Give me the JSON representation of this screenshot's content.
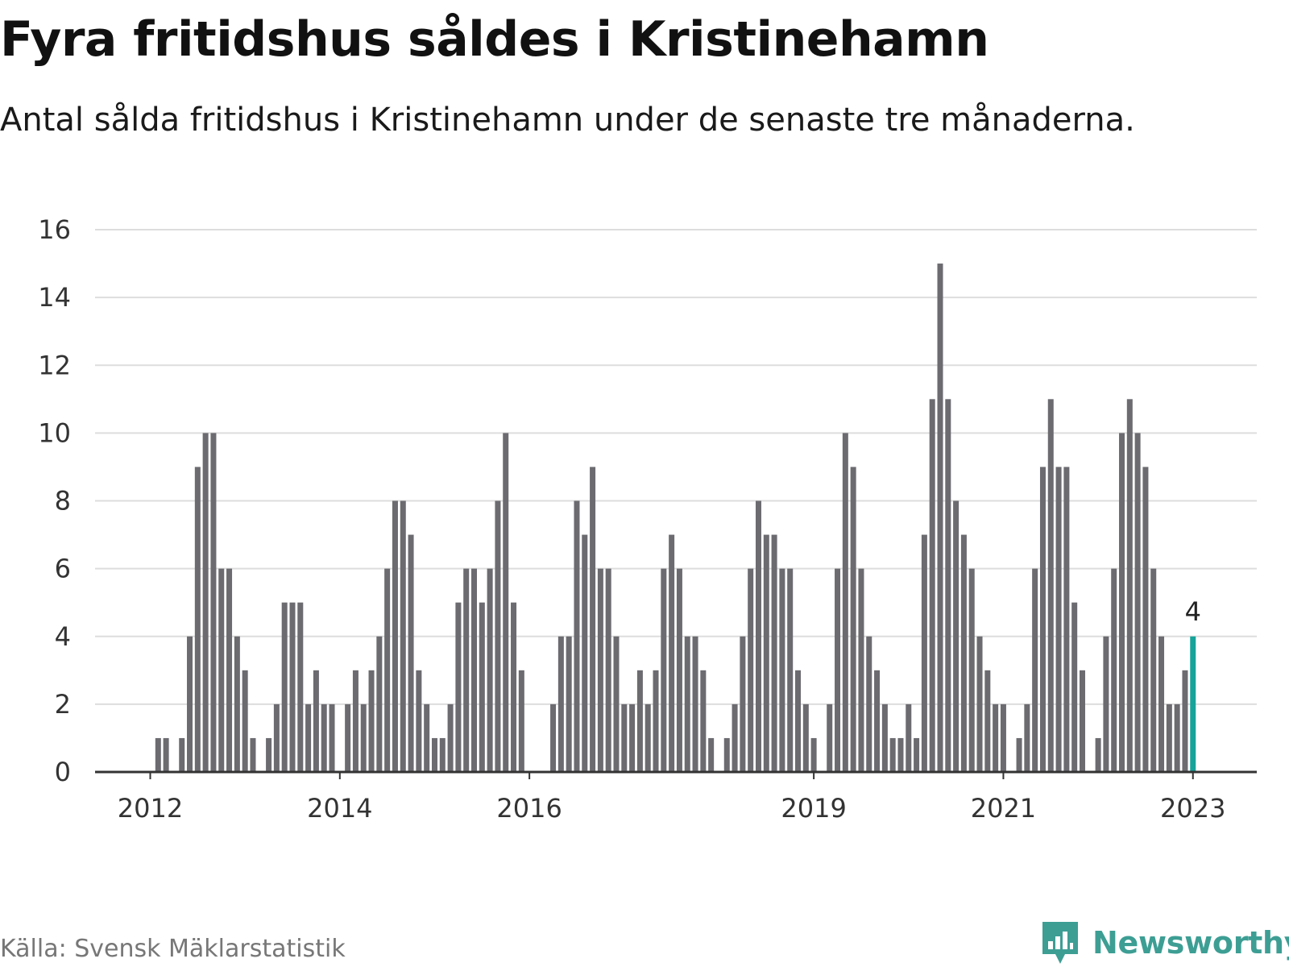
{
  "title": "Fyra fritidshus såldes i Kristinehamn",
  "subtitle": "Antal sålda fritidshus i Kristinehamn under de senaste tre månaderna.",
  "source": "Källa: Svensk Mäklarstatistik",
  "logo": {
    "text": "Newsworthy",
    "icon": "newsworthy-logo-icon",
    "color": "#3d9e94"
  },
  "colors": {
    "bar": "#6b6b70",
    "highlight": "#16a39a",
    "grid": "#dddddd",
    "axis": "#333333"
  },
  "chart_data": {
    "type": "bar",
    "xlabel": "",
    "ylabel": "",
    "ylim": [
      0,
      16
    ],
    "yticks": [
      0,
      2,
      4,
      6,
      8,
      10,
      12,
      14,
      16
    ],
    "grid": true,
    "xticks": [
      "2012",
      "2014",
      "2016",
      "2019",
      "2021",
      "2023"
    ],
    "x_start_label": "2012",
    "highlight_label": "4",
    "series": [
      {
        "values": [
          0,
          1,
          1,
          0,
          1,
          4,
          9,
          10,
          10,
          6,
          6,
          4,
          3,
          1,
          0,
          1,
          2,
          5,
          5,
          5,
          2,
          3,
          2,
          2,
          0,
          2,
          3,
          2,
          3,
          4,
          6,
          8,
          8,
          7,
          3,
          2,
          1,
          1,
          2,
          5,
          6,
          6,
          5,
          6,
          8,
          10,
          5,
          3,
          0,
          0,
          0,
          2,
          4,
          4,
          8,
          7,
          9,
          6,
          6,
          4,
          2,
          2,
          3,
          2,
          3,
          6,
          7,
          6,
          4,
          4,
          3,
          1,
          0,
          1,
          2,
          4,
          6,
          8,
          7,
          7,
          6,
          6,
          3,
          2,
          1,
          0,
          2,
          6,
          10,
          9,
          6,
          4,
          3,
          2,
          1,
          1,
          2,
          1,
          7,
          11,
          15,
          11,
          8,
          7,
          6,
          4,
          3,
          2,
          2,
          0,
          1,
          2,
          6,
          9,
          11,
          9,
          9,
          5,
          3,
          0,
          1,
          4,
          6,
          10,
          11,
          10,
          9,
          6,
          4,
          2,
          2,
          3,
          4
        ]
      }
    ]
  }
}
